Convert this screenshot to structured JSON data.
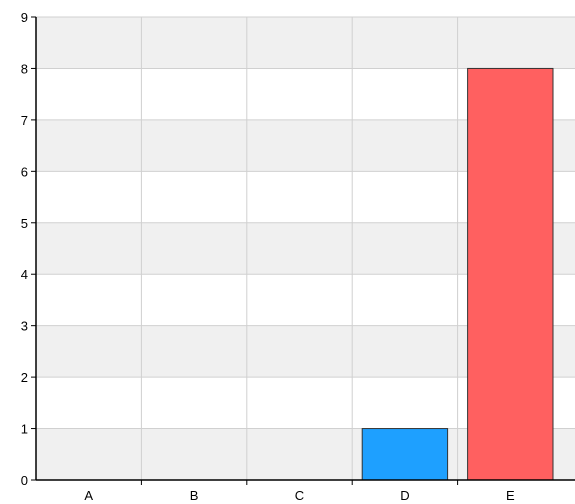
{
  "chart_data": {
    "type": "bar",
    "title": "",
    "xlabel": "",
    "ylabel": "",
    "categories": [
      "A",
      "B",
      "C",
      "D",
      "E"
    ],
    "values": [
      0,
      0,
      0,
      1,
      8
    ],
    "ylim": [
      0,
      9
    ],
    "yticks": [
      "0",
      "1",
      "2",
      "3",
      "4",
      "5",
      "6",
      "7",
      "8",
      "9"
    ],
    "grid": true,
    "legend": "none",
    "colors": {
      "bars": [
        "#1ea0ff",
        "#1ea0ff",
        "#1ea0ff",
        "#1ea0ff",
        "#ff6060"
      ],
      "bar_outline": "#333333",
      "band_light": "#f0f0f0",
      "band_white": "#ffffff",
      "gridline": "#d0d0d0",
      "axis": "#000000"
    }
  }
}
